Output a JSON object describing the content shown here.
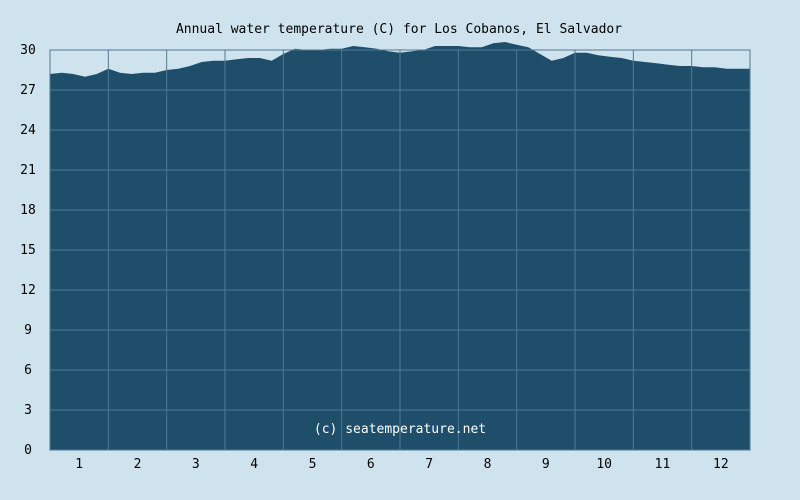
{
  "chart_data": {
    "type": "area",
    "title": "Annual water temperature (C) for Los Cobanos, El Salvador",
    "credit": "(c) seatemperature.net",
    "xlabel": "",
    "ylabel": "",
    "ylim": [
      0,
      30
    ],
    "xlim": [
      0.5,
      12.5
    ],
    "y_ticks": [
      0,
      3,
      6,
      9,
      12,
      15,
      18,
      21,
      24,
      27,
      30
    ],
    "x_ticks": [
      1,
      2,
      3,
      4,
      5,
      6,
      7,
      8,
      9,
      10,
      11,
      12
    ],
    "grid": true,
    "colors": {
      "background": "#cfe3ee",
      "fill": "#1f4e6a",
      "grid": "#4f7a94",
      "frame": "#4f7a94"
    },
    "x": [
      0.5,
      0.7,
      0.9,
      1.1,
      1.3,
      1.5,
      1.7,
      1.9,
      2.1,
      2.3,
      2.5,
      2.7,
      2.9,
      3.1,
      3.3,
      3.5,
      3.7,
      3.9,
      4.1,
      4.3,
      4.5,
      4.7,
      4.9,
      5.1,
      5.3,
      5.5,
      5.7,
      5.9,
      6.1,
      6.3,
      6.5,
      6.7,
      6.9,
      7.1,
      7.3,
      7.5,
      7.7,
      7.9,
      8.1,
      8.3,
      8.5,
      8.7,
      8.9,
      9.1,
      9.3,
      9.5,
      9.7,
      9.9,
      10.1,
      10.3,
      10.5,
      10.7,
      10.9,
      11.1,
      11.3,
      11.5,
      11.7,
      11.9,
      12.1,
      12.3,
      12.5
    ],
    "values": [
      28.2,
      28.3,
      28.2,
      28.0,
      28.2,
      28.6,
      28.3,
      28.2,
      28.3,
      28.3,
      28.5,
      28.6,
      28.8,
      29.1,
      29.2,
      29.2,
      29.3,
      29.4,
      29.4,
      29.2,
      29.7,
      30.1,
      30.0,
      30.0,
      30.1,
      30.1,
      30.3,
      30.2,
      30.1,
      29.9,
      29.8,
      29.9,
      30.0,
      30.3,
      30.3,
      30.3,
      30.2,
      30.2,
      30.5,
      30.6,
      30.4,
      30.2,
      29.7,
      29.2,
      29.4,
      29.8,
      29.8,
      29.6,
      29.5,
      29.4,
      29.2,
      29.1,
      29.0,
      28.9,
      28.8,
      28.8,
      28.7,
      28.7,
      28.6,
      28.6,
      28.6
    ]
  }
}
